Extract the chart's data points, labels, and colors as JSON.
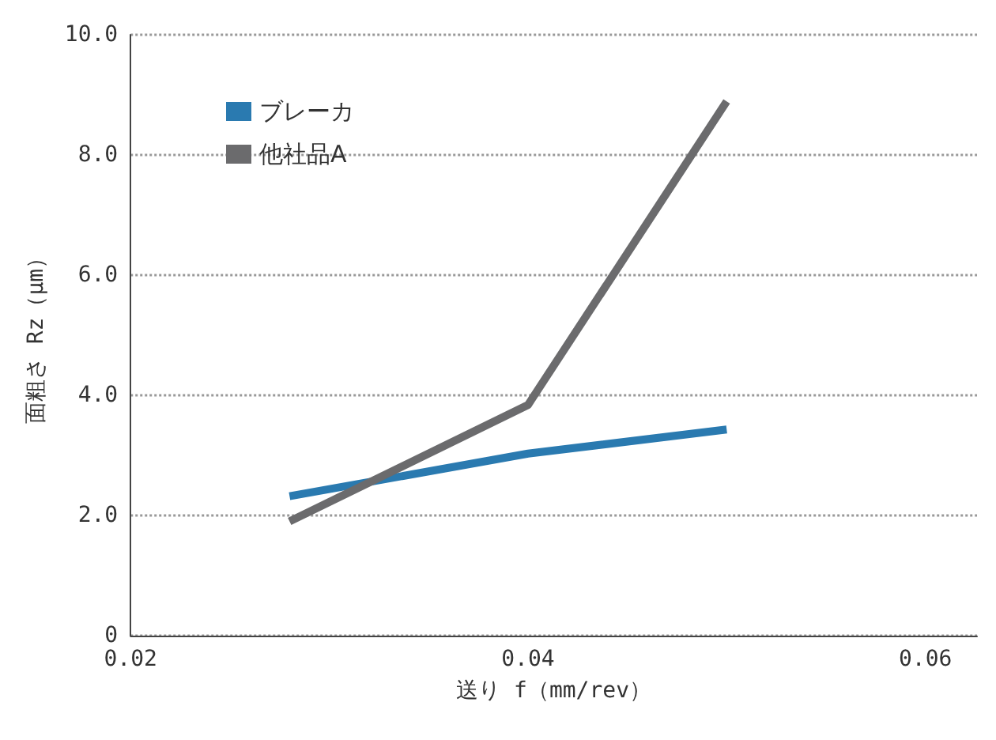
{
  "chart_data": {
    "type": "line",
    "xlabel": "送り f（mm/rev）",
    "ylabel": "面粗さ Rz（μm）",
    "x": [
      0.028,
      0.04,
      0.05
    ],
    "series": [
      {
        "name": "ブレーカ",
        "color": "#2a7ab0",
        "values": [
          2.32,
          3.03,
          3.43
        ]
      },
      {
        "name": "他社品A",
        "color": "#6b6b6d",
        "values": [
          1.9,
          3.84,
          8.89
        ]
      }
    ],
    "xlim": [
      0.02,
      0.0626
    ],
    "xticks": [
      0.02,
      0.04,
      0.06
    ],
    "ylim": [
      0,
      10
    ],
    "yticks": [
      {
        "value": 0,
        "label": "0"
      },
      {
        "value": 2,
        "label": "2.0"
      },
      {
        "value": 4,
        "label": "4.0"
      },
      {
        "value": 6,
        "label": "6.0"
      },
      {
        "value": 8,
        "label": "8.0"
      },
      {
        "value": 10,
        "label": "10.0"
      }
    ],
    "grid": "y",
    "legend": "top left",
    "marker": "none",
    "line_style": "solid"
  }
}
